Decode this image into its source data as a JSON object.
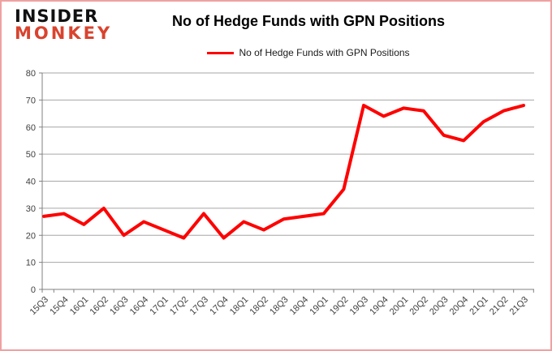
{
  "logo": {
    "line1": "INSIDER",
    "line2": "MONKEY"
  },
  "header": {
    "title": "No of Hedge Funds with GPN Positions"
  },
  "legend": {
    "label": "No of Hedge Funds with GPN Positions"
  },
  "colors": {
    "series_line": "#fe0000",
    "gridline": "#a6a6a6",
    "axis_line": "#808080",
    "tick_text": "#3f3f3f",
    "logo_accent": "#d9432e",
    "frame_border": "#efa1a1",
    "title_text": "#000000"
  },
  "chart_data": {
    "type": "line",
    "title": "No of Hedge Funds with GPN Positions",
    "categories": [
      "15Q3",
      "15Q4",
      "16Q1",
      "16Q2",
      "16Q3",
      "16Q4",
      "17Q1",
      "17Q2",
      "17Q3",
      "17Q4",
      "18Q1",
      "18Q2",
      "18Q3",
      "18Q4",
      "19Q1",
      "19Q2",
      "19Q3",
      "19Q4",
      "20Q1",
      "20Q2",
      "20Q3",
      "20Q4",
      "21Q1",
      "21Q2",
      "21Q3"
    ],
    "series": [
      {
        "name": "No of Hedge Funds with GPN Positions",
        "values": [
          27,
          28,
          24,
          30,
          20,
          25,
          22,
          19,
          28,
          19,
          25,
          22,
          26,
          27,
          28,
          37,
          68,
          64,
          67,
          66,
          57,
          55,
          62,
          66,
          68
        ],
        "color": "#fe0000"
      }
    ],
    "xlabel": "",
    "ylabel": "",
    "ylim": [
      0,
      80
    ],
    "ytick_step": 10,
    "yticks": [
      0,
      10,
      20,
      30,
      40,
      50,
      60,
      70,
      80
    ],
    "grid": "horizontal",
    "legend_position": "top-center",
    "x_label_rotation_deg": 45
  }
}
